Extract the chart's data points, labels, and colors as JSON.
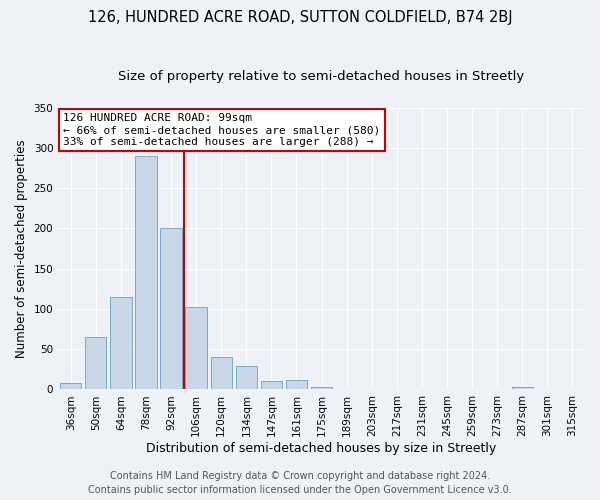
{
  "title": "126, HUNDRED ACRE ROAD, SUTTON COLDFIELD, B74 2BJ",
  "subtitle": "Size of property relative to semi-detached houses in Streetly",
  "xlabel": "Distribution of semi-detached houses by size in Streetly",
  "ylabel": "Number of semi-detached properties",
  "bar_labels": [
    "36sqm",
    "50sqm",
    "64sqm",
    "78sqm",
    "92sqm",
    "106sqm",
    "120sqm",
    "134sqm",
    "147sqm",
    "161sqm",
    "175sqm",
    "189sqm",
    "203sqm",
    "217sqm",
    "231sqm",
    "245sqm",
    "259sqm",
    "273sqm",
    "287sqm",
    "301sqm",
    "315sqm"
  ],
  "bar_values": [
    8,
    65,
    115,
    290,
    200,
    102,
    40,
    29,
    10,
    12,
    3,
    1,
    1,
    1,
    1,
    1,
    0,
    0,
    3,
    0,
    0
  ],
  "bar_color": "#c8d8e8",
  "bar_edge_color": "#7aaac8",
  "annotation_line1": "126 HUNDRED ACRE ROAD: 99sqm",
  "annotation_line2": "← 66% of semi-detached houses are smaller (580)",
  "annotation_line3": "33% of semi-detached houses are larger (288) →",
  "vline_color": "#cc0000",
  "annotation_box_color": "#ffffff",
  "annotation_box_edge": "#cc0000",
  "ylim": [
    0,
    350
  ],
  "yticks": [
    0,
    50,
    100,
    150,
    200,
    250,
    300,
    350
  ],
  "footer1": "Contains HM Land Registry data © Crown copyright and database right 2024.",
  "footer2": "Contains public sector information licensed under the Open Government Licence v3.0.",
  "bg_color": "#eef2f7",
  "grid_color": "#ffffff",
  "title_fontsize": 10.5,
  "subtitle_fontsize": 9.5,
  "ylabel_fontsize": 8.5,
  "xlabel_fontsize": 9,
  "tick_fontsize": 7.5,
  "annotation_fontsize": 8,
  "footer_fontsize": 7
}
